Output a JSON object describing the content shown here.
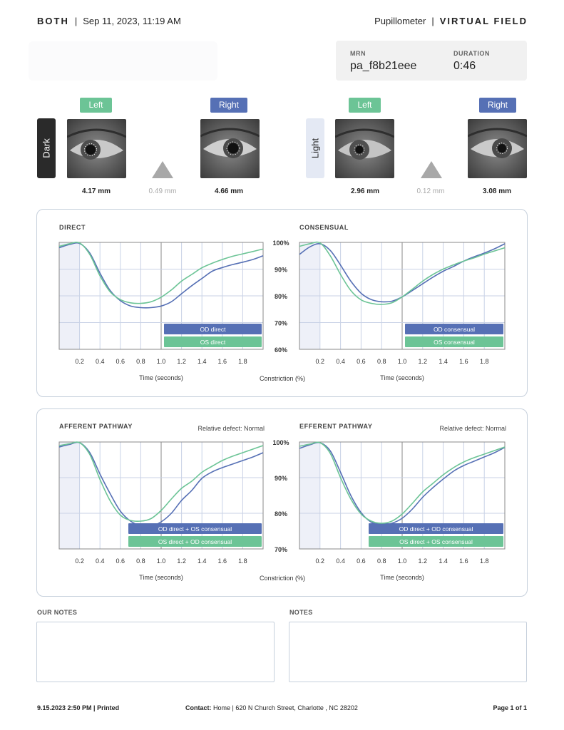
{
  "header": {
    "brand": "BOTH",
    "datetime": "Sep 11, 2023, 11:19 AM",
    "device": "Pupillometer",
    "mode": "VIRTUAL FIELD",
    "separator": "|"
  },
  "info": {
    "mrn_label": "MRN",
    "mrn_value": "pa_f8b21eee",
    "duration_label": "DURATION",
    "duration_value": "0:46"
  },
  "dark": {
    "tab_label": "Dark",
    "left_label": "Left",
    "right_label": "Right",
    "left_mm": "4.17 mm",
    "diff_mm": "0.49 mm",
    "right_mm": "4.66 mm"
  },
  "light": {
    "tab_label": "Light",
    "left_label": "Left",
    "right_label": "Right",
    "left_mm": "2.96 mm",
    "diff_mm": "0.12 mm",
    "right_mm": "3.08 mm"
  },
  "colors": {
    "od": "#5670b5",
    "os": "#6cc496",
    "grid": "#c9d2e6",
    "frame": "#888888",
    "baseline_shade": "#eef0f8"
  },
  "chart_data": [
    {
      "type": "line",
      "title": "DIRECT",
      "xlabel": "Time (seconds)",
      "ylabel": "Constriction (%)",
      "xlim": [
        0,
        2.0
      ],
      "ylim": [
        60,
        100
      ],
      "x_ticks": [
        "0.2",
        "0.4",
        "0.6",
        "0.8",
        "1.0",
        "1.2",
        "1.4",
        "1.6",
        "1.8"
      ],
      "y_ticks": [
        "100%",
        "90%",
        "80%",
        "70%",
        "60%"
      ],
      "series": [
        {
          "name": "OD direct",
          "color": "od",
          "x": [
            0,
            0.1,
            0.2,
            0.3,
            0.4,
            0.5,
            0.6,
            0.7,
            0.8,
            0.9,
            1.0,
            1.1,
            1.2,
            1.3,
            1.4,
            1.5,
            1.6,
            1.7,
            1.8,
            1.9,
            2.0
          ],
          "y": [
            98,
            99.2,
            99.6,
            96,
            88.5,
            82,
            78.2,
            76.2,
            75.6,
            75.6,
            76.2,
            77.8,
            80.8,
            83.8,
            86.5,
            89.2,
            90.6,
            91.7,
            92.6,
            93.6,
            95
          ]
        },
        {
          "name": "OS direct",
          "color": "os",
          "x": [
            0,
            0.1,
            0.2,
            0.3,
            0.4,
            0.5,
            0.6,
            0.7,
            0.8,
            0.9,
            1.0,
            1.1,
            1.2,
            1.3,
            1.4,
            1.5,
            1.6,
            1.7,
            1.8,
            1.9,
            2.0
          ],
          "y": [
            98.5,
            99.5,
            99.8,
            95.5,
            87.5,
            81.5,
            78.6,
            77.4,
            77.2,
            77.8,
            79.5,
            82.2,
            85.5,
            88,
            90.5,
            92.2,
            93.6,
            94.8,
            95.7,
            96.6,
            97.5
          ]
        }
      ]
    },
    {
      "type": "line",
      "title": "CONSENSUAL",
      "xlabel": "Time (seconds)",
      "ylabel": "Constriction (%)",
      "xlim": [
        0,
        2.0
      ],
      "ylim": [
        60,
        100
      ],
      "x_ticks": [
        "0.2",
        "0.4",
        "0.6",
        "0.8",
        "1.0",
        "1.2",
        "1.4",
        "1.6",
        "1.8"
      ],
      "y_ticks": [
        "100%",
        "90%",
        "80%",
        "70%",
        "60%"
      ],
      "series": [
        {
          "name": "OD consensual",
          "color": "od",
          "x": [
            0,
            0.1,
            0.2,
            0.3,
            0.4,
            0.5,
            0.6,
            0.7,
            0.8,
            0.9,
            1.0,
            1.1,
            1.2,
            1.3,
            1.4,
            1.5,
            1.6,
            1.7,
            1.8,
            1.9,
            2.0
          ],
          "y": [
            95.5,
            98.3,
            99.5,
            97,
            91.5,
            85.5,
            81,
            78.6,
            77.8,
            78,
            79.6,
            82,
            84.5,
            87,
            89.2,
            91,
            93,
            94.6,
            96,
            97.6,
            99.5
          ]
        },
        {
          "name": "OS consensual",
          "color": "os",
          "x": [
            0,
            0.1,
            0.2,
            0.3,
            0.4,
            0.5,
            0.6,
            0.7,
            0.8,
            0.9,
            1.0,
            1.1,
            1.2,
            1.3,
            1.4,
            1.5,
            1.6,
            1.7,
            1.8,
            1.9,
            2.0
          ],
          "y": [
            98.5,
            99.5,
            99.8,
            95,
            88,
            82,
            78.5,
            77.2,
            76.8,
            77.4,
            79.6,
            82.5,
            85.5,
            88,
            90,
            91.6,
            93,
            94.2,
            95.6,
            96.8,
            98
          ]
        }
      ]
    },
    {
      "type": "line",
      "title": "AFFERENT PATHWAY",
      "annotation": "Relative defect: Normal",
      "xlabel": "Time (seconds)",
      "ylabel": "Constriction (%)",
      "xlim": [
        0,
        2.0
      ],
      "ylim": [
        70,
        100
      ],
      "x_ticks": [
        "0.2",
        "0.4",
        "0.6",
        "0.8",
        "1.0",
        "1.2",
        "1.4",
        "1.6",
        "1.8"
      ],
      "y_ticks": [
        "100%",
        "90%",
        "80%",
        "70%"
      ],
      "series": [
        {
          "name": "OD direct + OS consensual",
          "color": "od",
          "x": [
            0,
            0.1,
            0.2,
            0.3,
            0.4,
            0.5,
            0.6,
            0.7,
            0.8,
            0.9,
            1.0,
            1.1,
            1.2,
            1.3,
            1.4,
            1.5,
            1.6,
            1.7,
            1.8,
            1.9,
            2.0
          ],
          "y": [
            98.6,
            99.3,
            99.8,
            97,
            91,
            85.5,
            80.6,
            77.8,
            76.5,
            76.4,
            77.6,
            80,
            83.6,
            86.4,
            89.8,
            91.6,
            92.8,
            93.8,
            94.8,
            95.8,
            97
          ]
        },
        {
          "name": "OS direct + OD consensual",
          "color": "os",
          "x": [
            0,
            0.1,
            0.2,
            0.3,
            0.4,
            0.5,
            0.6,
            0.7,
            0.8,
            0.9,
            1.0,
            1.1,
            1.2,
            1.3,
            1.4,
            1.5,
            1.6,
            1.7,
            1.8,
            1.9,
            2.0
          ],
          "y": [
            99,
            99.5,
            99.8,
            96.5,
            89.5,
            83.5,
            79.5,
            78,
            77.8,
            78.5,
            80.8,
            84,
            87,
            89,
            91.5,
            93.2,
            94.8,
            96,
            97,
            98,
            99
          ]
        }
      ]
    },
    {
      "type": "line",
      "title": "EFFERENT PATHWAY",
      "annotation": "Relative defect: Normal",
      "xlabel": "Time (seconds)",
      "ylabel": "Constriction (%)",
      "xlim": [
        0,
        2.0
      ],
      "ylim": [
        70,
        100
      ],
      "x_ticks": [
        "0.2",
        "0.4",
        "0.6",
        "0.8",
        "1.0",
        "1.2",
        "1.4",
        "1.6",
        "1.8"
      ],
      "y_ticks": [
        "100%",
        "90%",
        "80%",
        "70%"
      ],
      "series": [
        {
          "name": "OD direct + OD consensual",
          "color": "od",
          "x": [
            0,
            0.1,
            0.2,
            0.3,
            0.4,
            0.5,
            0.6,
            0.7,
            0.8,
            0.9,
            1.0,
            1.1,
            1.2,
            1.3,
            1.4,
            1.5,
            1.6,
            1.7,
            1.8,
            1.9,
            2.0
          ],
          "y": [
            98.2,
            99.2,
            99.8,
            97.5,
            91.5,
            85,
            80.2,
            77.5,
            76.8,
            77.2,
            78.6,
            81.2,
            84.5,
            87.2,
            89.6,
            91.8,
            93.4,
            94.6,
            95.8,
            97,
            98.5
          ]
        },
        {
          "name": "OS direct + OS consensual",
          "color": "os",
          "x": [
            0,
            0.1,
            0.2,
            0.3,
            0.4,
            0.5,
            0.6,
            0.7,
            0.8,
            0.9,
            1.0,
            1.1,
            1.2,
            1.3,
            1.4,
            1.5,
            1.6,
            1.7,
            1.8,
            1.9,
            2.0
          ],
          "y": [
            98.8,
            99.4,
            99.8,
            96.8,
            90,
            84,
            79.8,
            77.8,
            77.2,
            77.8,
            79.8,
            82.8,
            86,
            88.4,
            90.8,
            92.8,
            94.4,
            95.6,
            96.6,
            97.6,
            98.6
          ]
        }
      ]
    }
  ],
  "notes": {
    "our_notes_label": "OUR NOTES",
    "notes_label": "NOTES"
  },
  "footer": {
    "printed": "9.15.2023  2:50 PM | Printed",
    "contact_label": "Contact:",
    "contact_value": " Home | 620 N Church Street, Charlotte , NC 28202",
    "page": "Page 1 of 1"
  }
}
